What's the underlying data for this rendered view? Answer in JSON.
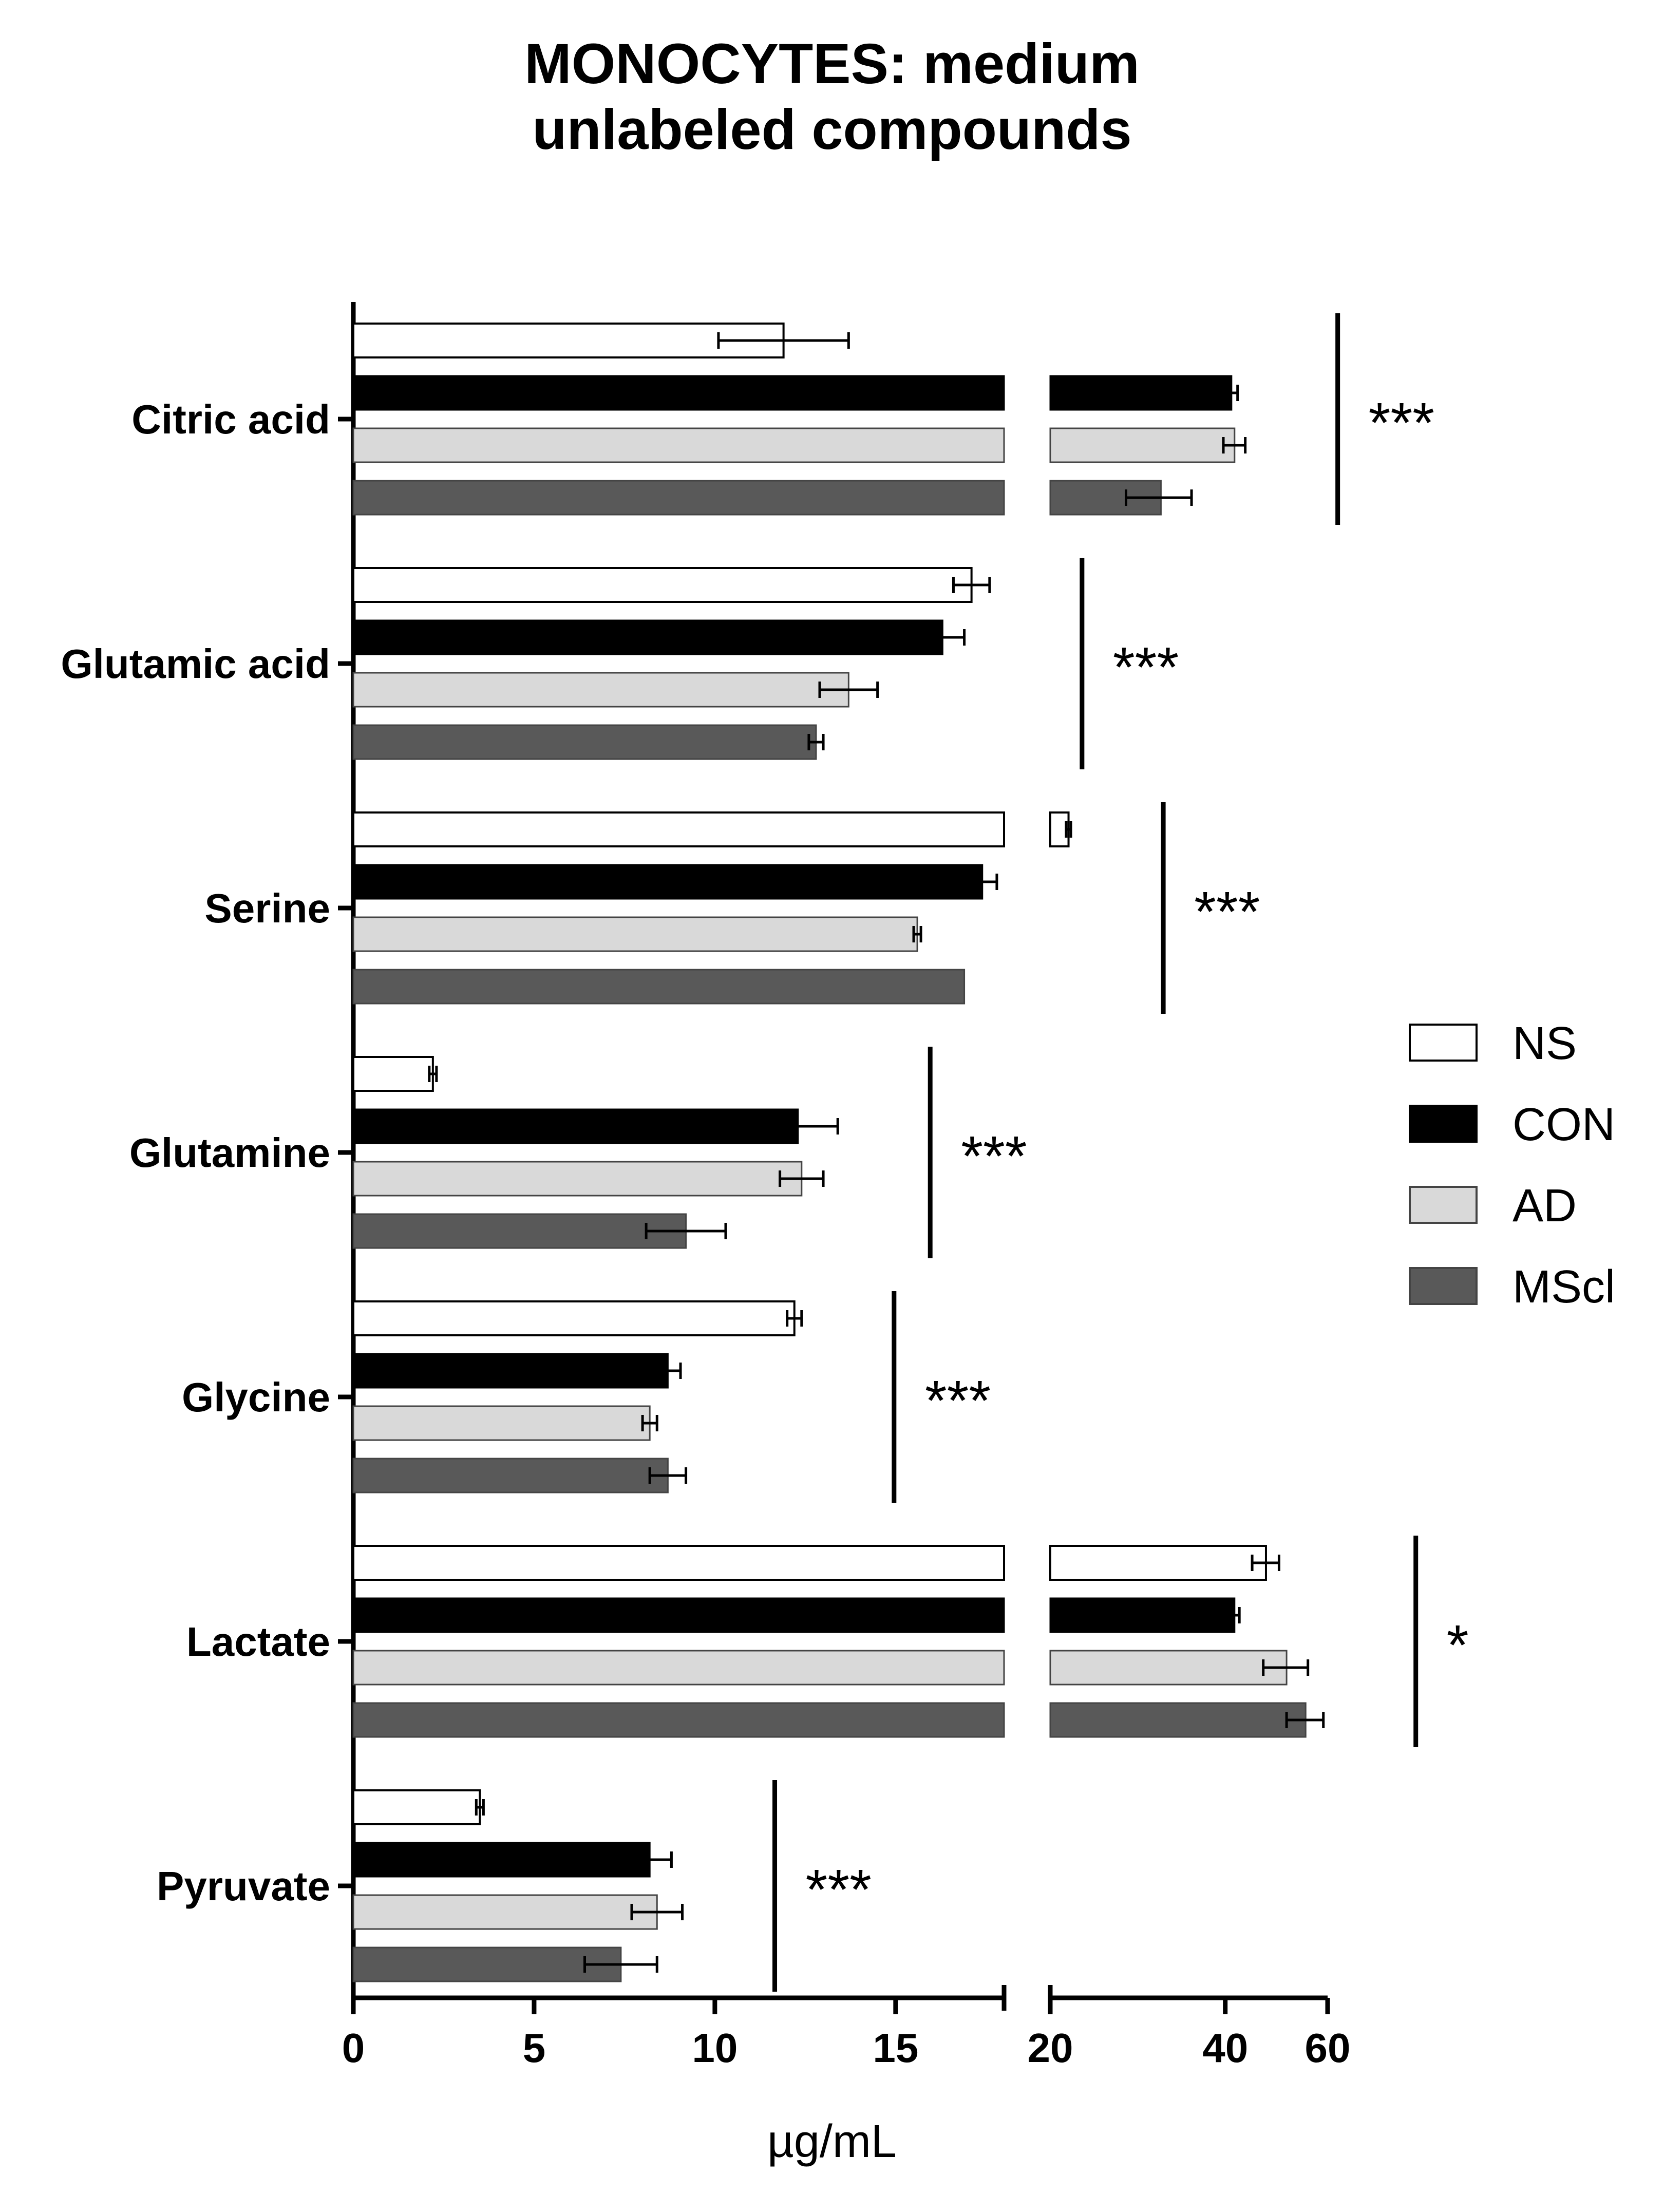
{
  "chart_data": {
    "type": "bar",
    "orientation": "horizontal",
    "title_lines": [
      "MONOCYTES: medium",
      "unlabeled compounds"
    ],
    "xlabel": "µg/mL",
    "ylabel": "",
    "x_axis": {
      "segments": [
        {
          "range": [
            0,
            18
          ],
          "ticks": [
            0,
            5,
            10,
            15
          ]
        },
        {
          "range": [
            20,
            60
          ],
          "scale": "log",
          "ticks": [
            20,
            40,
            60
          ]
        }
      ],
      "tick_labels": [
        "0",
        "5",
        "10",
        "15",
        "20",
        "40",
        "60"
      ]
    },
    "categories": [
      "Citric acid",
      "Glutamic acid",
      "Serine",
      "Glutamine",
      "Glycine",
      "Lactate",
      "Pyruvate"
    ],
    "series": [
      {
        "name": "NS",
        "color": "#ffffff",
        "values": [
          11.9,
          17.1,
          21.5,
          2.2,
          12.2,
          47,
          3.5
        ],
        "errors": [
          1.8,
          0.5,
          0.2,
          0.1,
          0.2,
          2.5,
          0.1
        ]
      },
      {
        "name": "CON",
        "color": "#000000",
        "values": [
          41,
          16.3,
          17.4,
          12.3,
          8.7,
          41.5,
          8.2
        ],
        "errors": [
          1.0,
          0.6,
          0.4,
          1.1,
          0.35,
          0.8,
          0.6
        ]
      },
      {
        "name": "AD",
        "color": "#d9d9d9",
        "values": [
          41.5,
          13.7,
          15.6,
          12.4,
          8.2,
          51,
          8.4
        ],
        "errors": [
          1.8,
          0.8,
          0.1,
          0.6,
          0.2,
          4.5,
          0.7
        ]
      },
      {
        "name": "MScl",
        "color": "#595959",
        "values": [
          31,
          12.8,
          16.9,
          9.2,
          8.7,
          55,
          7.4
        ],
        "errors": [
          4.0,
          0.2,
          0.0,
          1.1,
          0.5,
          4.0,
          1.0
        ]
      }
    ],
    "significance": [
      "***",
      "***",
      "***",
      "***",
      "***",
      "*",
      "***"
    ],
    "legend": {
      "entries": [
        "NS",
        "CON",
        "AD",
        "MScl"
      ],
      "placement": "right"
    },
    "grid": false
  }
}
